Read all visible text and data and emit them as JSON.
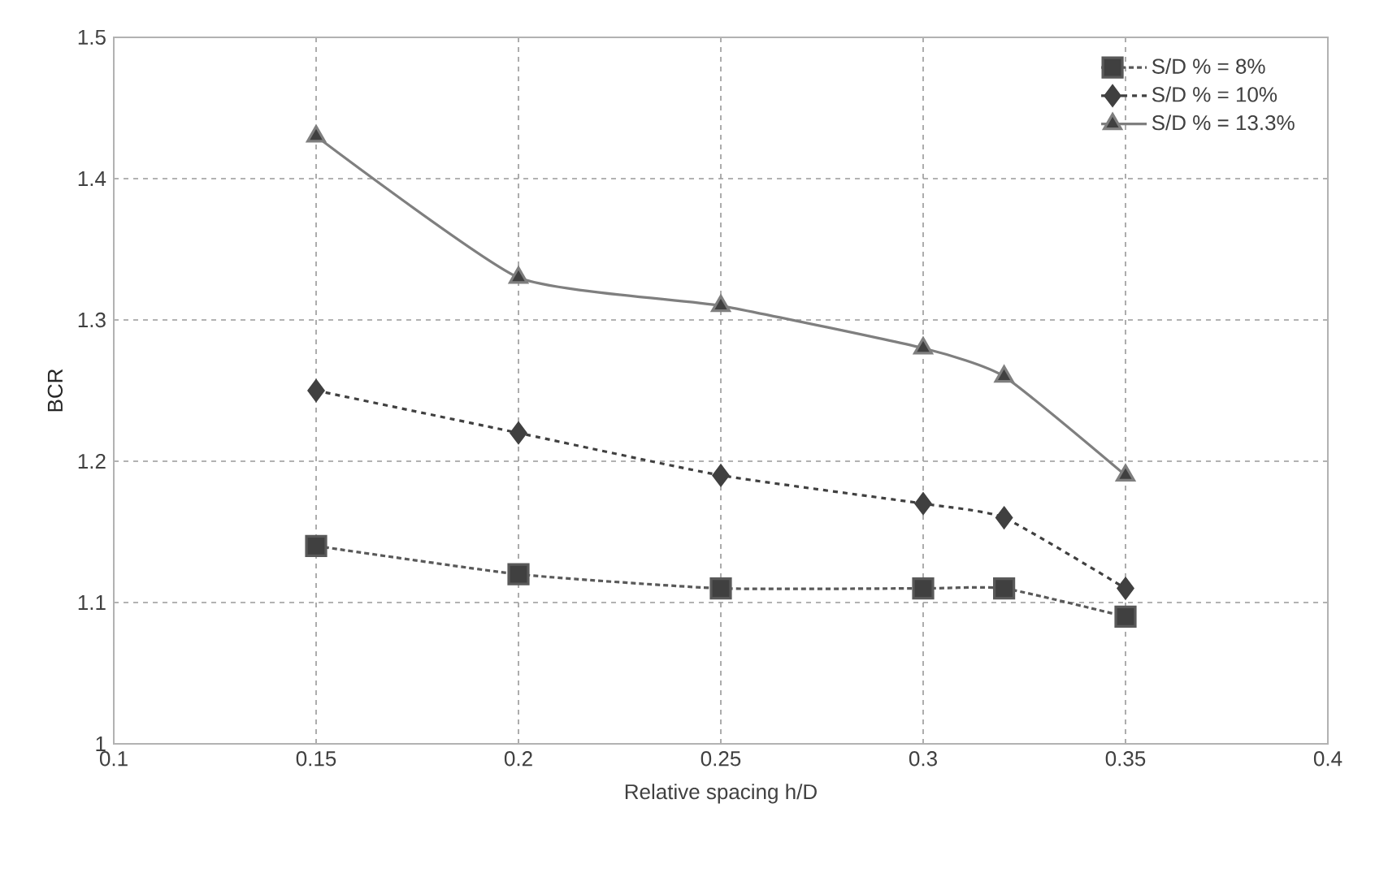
{
  "chart_data": {
    "type": "line",
    "xlabel": "Relative spacing h/D",
    "ylabel": "BCR",
    "x": [
      0.15,
      0.2,
      0.25,
      0.3,
      0.32,
      0.35
    ],
    "series": [
      {
        "name": "S/D % = 8%",
        "color": "#595959",
        "marker": "square",
        "line_style": "dotted",
        "values": [
          1.14,
          1.12,
          1.11,
          1.11,
          1.11,
          1.09
        ]
      },
      {
        "name": "S/D % = 10%",
        "color": "#404040",
        "marker": "diamond",
        "line_style": "dashed",
        "values": [
          1.25,
          1.22,
          1.19,
          1.17,
          1.16,
          1.11
        ]
      },
      {
        "name": "S/D % = 13.3%",
        "color": "#7f7f7f",
        "marker": "triangle",
        "line_style": "solid",
        "values": [
          1.43,
          1.33,
          1.31,
          1.28,
          1.26,
          1.19
        ]
      }
    ],
    "xlim": [
      0.1,
      0.4
    ],
    "ylim": [
      1,
      1.5
    ],
    "xticks": [
      0.1,
      0.15,
      0.2,
      0.25,
      0.3,
      0.35,
      0.4
    ],
    "yticks": [
      1,
      1.1,
      1.2,
      1.3,
      1.4,
      1.5
    ],
    "grid": true,
    "legend": "top right"
  }
}
